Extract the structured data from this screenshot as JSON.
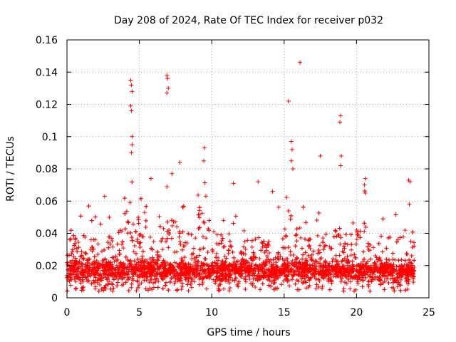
{
  "chart_data": {
    "type": "scatter",
    "title": "Day 208 of 2024, Rate Of TEC Index for receiver p032",
    "xlabel": "GPS time / hours",
    "ylabel": "ROTI / TECUs",
    "xlim": [
      0,
      25
    ],
    "ylim": [
      0,
      0.16
    ],
    "x_ticks": [
      0,
      5,
      10,
      15,
      20,
      25
    ],
    "x_tick_labels": [
      "0",
      "5",
      "10",
      "15",
      "20",
      "25"
    ],
    "y_ticks": [
      0,
      0.02,
      0.04,
      0.06,
      0.08,
      0.1,
      0.12,
      0.14,
      0.16
    ],
    "y_tick_labels": [
      "0",
      "0.02",
      "0.04",
      "0.06",
      "0.08",
      "0.1",
      "0.12",
      "0.14",
      "0.16"
    ],
    "grid": true,
    "marker": "plus",
    "color": "#ff0000",
    "data_range_hours": [
      0,
      24
    ],
    "dense_band": {
      "ymin": 0.004,
      "ymax": 0.045,
      "typical": 0.015
    },
    "notable_points": [
      {
        "x": 4.4,
        "y": 0.135
      },
      {
        "x": 4.45,
        "y": 0.132
      },
      {
        "x": 4.5,
        "y": 0.128
      },
      {
        "x": 4.4,
        "y": 0.119
      },
      {
        "x": 4.45,
        "y": 0.116
      },
      {
        "x": 4.5,
        "y": 0.1
      },
      {
        "x": 4.5,
        "y": 0.095
      },
      {
        "x": 4.45,
        "y": 0.09
      },
      {
        "x": 6.9,
        "y": 0.138
      },
      {
        "x": 6.95,
        "y": 0.136
      },
      {
        "x": 7.0,
        "y": 0.13
      },
      {
        "x": 6.9,
        "y": 0.127
      },
      {
        "x": 7.25,
        "y": 0.077
      },
      {
        "x": 9.5,
        "y": 0.093
      },
      {
        "x": 9.45,
        "y": 0.085
      },
      {
        "x": 15.3,
        "y": 0.122
      },
      {
        "x": 16.1,
        "y": 0.146
      },
      {
        "x": 15.5,
        "y": 0.097
      },
      {
        "x": 15.55,
        "y": 0.092
      },
      {
        "x": 15.5,
        "y": 0.085
      },
      {
        "x": 15.6,
        "y": 0.08
      },
      {
        "x": 17.5,
        "y": 0.088
      },
      {
        "x": 18.9,
        "y": 0.113
      },
      {
        "x": 18.85,
        "y": 0.109
      },
      {
        "x": 18.95,
        "y": 0.088
      },
      {
        "x": 18.9,
        "y": 0.082
      },
      {
        "x": 23.6,
        "y": 0.073
      },
      {
        "x": 23.7,
        "y": 0.072
      },
      {
        "x": 23.65,
        "y": 0.058
      },
      {
        "x": 13.2,
        "y": 0.072
      },
      {
        "x": 11.5,
        "y": 0.071
      },
      {
        "x": 5.8,
        "y": 0.074
      },
      {
        "x": 7.8,
        "y": 0.084
      },
      {
        "x": 2.6,
        "y": 0.063
      },
      {
        "x": 20.6,
        "y": 0.074
      },
      {
        "x": 20.55,
        "y": 0.07
      },
      {
        "x": 20.6,
        "y": 0.065
      },
      {
        "x": 14.2,
        "y": 0.066
      }
    ],
    "activity_peaks_hours": [
      {
        "x": 4.4,
        "peak_band_top": 0.075
      },
      {
        "x": 6.9,
        "peak_band_top": 0.078
      },
      {
        "x": 9.4,
        "peak_band_top": 0.072
      },
      {
        "x": 15.4,
        "peak_band_top": 0.065
      },
      {
        "x": 18.8,
        "peak_band_top": 0.06
      },
      {
        "x": 20.6,
        "peak_band_top": 0.055
      }
    ]
  }
}
